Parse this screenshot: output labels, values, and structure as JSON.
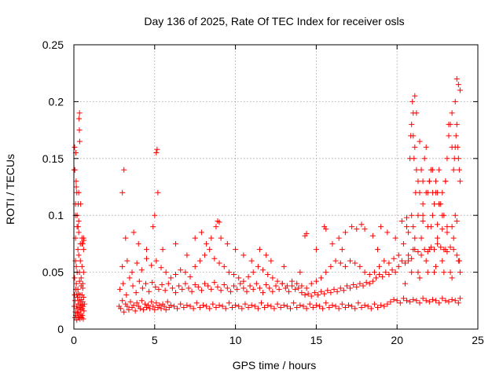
{
  "chart_data": {
    "type": "scatter",
    "title": "Day 136 of 2025, Rate Of TEC Index for receiver osls",
    "xlabel": "GPS time / hours",
    "ylabel": "ROTI / TECUs",
    "xlim": [
      0,
      25
    ],
    "ylim": [
      0,
      0.25
    ],
    "x_ticks": [
      0,
      5,
      10,
      15,
      20,
      25
    ],
    "y_ticks": [
      0,
      0.05,
      0.1,
      0.15,
      0.2,
      0.25
    ],
    "x_tick_labels": [
      "0",
      "5",
      "10",
      "15",
      "20",
      "25"
    ],
    "y_tick_labels": [
      "0",
      "0.05",
      "0.1",
      "0.15",
      "0.2",
      "0.25"
    ],
    "grid": true,
    "marker": "plus",
    "color": "#ff0000",
    "series": [
      {
        "x": [
          0.02,
          0.05,
          0.08,
          0.1,
          0.12,
          0.15,
          0.18,
          0.2,
          0.22,
          0.25,
          0.28,
          0.3,
          0.32,
          0.35,
          0.38,
          0.4,
          0.42,
          0.45,
          0.48,
          0.5,
          0.52,
          0.55,
          0.58,
          0.6,
          0.62,
          0.65,
          0.05,
          0.1,
          0.15,
          0.2,
          0.25,
          0.3,
          0.35,
          0.4,
          0.45,
          0.5,
          0.55,
          0.6,
          0.1,
          0.2,
          0.3,
          0.4,
          0.5,
          0.6,
          0.08,
          0.12,
          0.18,
          0.22,
          0.28,
          0.33,
          0.38,
          0.43,
          0.48,
          0.53,
          0.58,
          0.15,
          0.25,
          0.35,
          0.45,
          0.55,
          0.1,
          0.3,
          0.5,
          0.06,
          0.12,
          0.35,
          0.15,
          0.32,
          0.36,
          0.34,
          0.05,
          0.02,
          0.1,
          0.14,
          0.2,
          0.27,
          0.3,
          0.26,
          0.18,
          0.42,
          0.55,
          0.6,
          0.62,
          2.8,
          2.9,
          3.0,
          3.1,
          3.2,
          3.3,
          3.4,
          3.5,
          3.6,
          3.7,
          3.8,
          3.9,
          4.0,
          4.1,
          4.2,
          4.3,
          4.4,
          4.5,
          4.6,
          4.7,
          4.8,
          4.9,
          5.0,
          5.1,
          5.2,
          5.3,
          5.4,
          5.5,
          5.6,
          5.7,
          5.8,
          5.9,
          6.0,
          6.2,
          6.4,
          6.6,
          6.8,
          7.0,
          7.2,
          7.4,
          7.6,
          7.8,
          8.0,
          8.2,
          8.4,
          8.6,
          8.8,
          9.0,
          9.2,
          9.4,
          9.6,
          9.8,
          10.0,
          10.2,
          10.4,
          10.6,
          10.8,
          11.0,
          11.2,
          11.4,
          11.6,
          11.8,
          12.0,
          12.2,
          12.4,
          12.6,
          12.8,
          13.0,
          13.2,
          13.4,
          13.6,
          13.8,
          14.0,
          14.2,
          14.4,
          14.6,
          14.8,
          15.0,
          15.2,
          15.4,
          15.6,
          15.8,
          16.0,
          16.2,
          16.4,
          16.6,
          16.8,
          17.0,
          17.2,
          17.4,
          17.6,
          17.8,
          18.0,
          18.2,
          18.4,
          18.6,
          18.8,
          19.0,
          19.2,
          19.4,
          19.6,
          19.8,
          20.0,
          20.2,
          20.4,
          20.6,
          20.8,
          21.0,
          21.2,
          21.4,
          21.6,
          21.8,
          22.0,
          22.2,
          22.4,
          22.6,
          22.8,
          23.0,
          23.2,
          23.4,
          23.6,
          23.8,
          23.9,
          2.85,
          3.05,
          3.25,
          3.45,
          3.65,
          3.85,
          4.05,
          4.25,
          4.45,
          4.65,
          4.85,
          5.05,
          5.25,
          5.45,
          5.65,
          5.85,
          6.1,
          6.3,
          6.5,
          6.7,
          6.9,
          7.1,
          7.3,
          7.5,
          7.7,
          7.9,
          8.1,
          8.3,
          8.5,
          8.7,
          8.9,
          9.1,
          9.3,
          9.5,
          9.7,
          9.9,
          10.1,
          10.3,
          10.5,
          10.7,
          10.9,
          11.1,
          11.3,
          11.5,
          11.7,
          11.9,
          12.1,
          12.3,
          12.5,
          12.7,
          12.9,
          13.1,
          13.3,
          13.5,
          13.7,
          13.9,
          14.1,
          14.3,
          14.5,
          14.7,
          14.9,
          15.1,
          15.3,
          15.5,
          15.7,
          15.9,
          16.1,
          16.3,
          16.5,
          16.7,
          16.9,
          17.1,
          17.3,
          17.5,
          17.7,
          17.9,
          18.1,
          18.3,
          18.5,
          18.7,
          18.9,
          19.1,
          19.3,
          19.5,
          19.7,
          19.9,
          20.1,
          20.3,
          20.5,
          20.7,
          20.9,
          21.1,
          21.3,
          21.5,
          21.7,
          21.9,
          22.1,
          22.3,
          22.5,
          22.7,
          22.9,
          23.1,
          23.3,
          23.5,
          23.7,
          23.85,
          3.0,
          3.3,
          3.6,
          3.9,
          4.2,
          4.5,
          4.8,
          5.1,
          5.4,
          5.7,
          6.0,
          6.3,
          6.6,
          6.9,
          7.2,
          7.5,
          7.8,
          8.1,
          8.4,
          8.7,
          9.0,
          9.3,
          9.6,
          9.9,
          10.2,
          10.5,
          10.8,
          11.1,
          11.4,
          11.7,
          12.0,
          12.3,
          12.6,
          12.9,
          13.2,
          13.5,
          13.8,
          14.1,
          14.4,
          14.7,
          15.0,
          15.3,
          15.6,
          15.9,
          16.2,
          16.5,
          16.8,
          17.1,
          17.4,
          17.7,
          18.0,
          18.3,
          18.6,
          18.9,
          19.2,
          19.5,
          19.8,
          20.1,
          20.4,
          20.7,
          21.0,
          21.3,
          21.6,
          21.9,
          22.2,
          22.5,
          22.8,
          23.1,
          23.4,
          23.7,
          3.0,
          3.1,
          3.2,
          3.7,
          4.0,
          4.5,
          4.9,
          5.0,
          5.1,
          5.15,
          5.2,
          5.5,
          6.3,
          7.0,
          7.5,
          7.9,
          8.2,
          8.5,
          8.8,
          8.9,
          9.0,
          9.1,
          9.5,
          10.0,
          10.5,
          11.0,
          11.5,
          11.9,
          12.2,
          13.0,
          14.0,
          14.3,
          14.4,
          15.0,
          15.5,
          15.6,
          16.0,
          16.4,
          16.6,
          16.8,
          17.2,
          17.5,
          17.8,
          18.0,
          18.5,
          18.8,
          19.0,
          19.4,
          19.9,
          20.3,
          20.6,
          20.9,
          21.0,
          21.1,
          21.2,
          21.4,
          21.6,
          21.8,
          22.0,
          22.2,
          22.4,
          22.6,
          22.8,
          23.0,
          23.2,
          23.4,
          23.6,
          23.7,
          23.8,
          23.9,
          20.8,
          20.85,
          20.9,
          20.95,
          21.0,
          21.05,
          21.1,
          21.15,
          21.2,
          21.3,
          21.4,
          21.5,
          21.6,
          21.7,
          21.8,
          21.9,
          22.0,
          22.1,
          22.2,
          22.3,
          22.4,
          22.5,
          22.6,
          22.7,
          22.8,
          22.9,
          23.0,
          23.1,
          23.2,
          23.3,
          23.4,
          23.5,
          23.55,
          23.6,
          23.65,
          23.7,
          23.75,
          23.8,
          23.85,
          23.9,
          20.5,
          20.7,
          21.0,
          21.3,
          21.5,
          21.8,
          22.0,
          22.3,
          22.5,
          22.8,
          23.0,
          23.3,
          23.5,
          23.8,
          20.6,
          21.1,
          21.6,
          22.1,
          22.6,
          23.1,
          23.6,
          20.9,
          21.4,
          21.9,
          22.4,
          22.9,
          23.4,
          23.9
        ],
        "y": [
          0.02,
          0.03,
          0.025,
          0.015,
          0.035,
          0.02,
          0.03,
          0.018,
          0.028,
          0.022,
          0.031,
          0.015,
          0.025,
          0.019,
          0.03,
          0.022,
          0.017,
          0.026,
          0.021,
          0.03,
          0.018,
          0.024,
          0.02,
          0.028,
          0.016,
          0.022,
          0.045,
          0.06,
          0.055,
          0.05,
          0.07,
          0.065,
          0.05,
          0.06,
          0.045,
          0.055,
          0.04,
          0.05,
          0.08,
          0.09,
          0.085,
          0.075,
          0.08,
          0.07,
          0.01,
          0.012,
          0.008,
          0.014,
          0.01,
          0.011,
          0.009,
          0.013,
          0.01,
          0.012,
          0.009,
          0.04,
          0.035,
          0.042,
          0.038,
          0.036,
          0.1,
          0.12,
          0.075,
          0.14,
          0.155,
          0.19,
          0.125,
          0.185,
          0.165,
          0.175,
          0.16,
          0.14,
          0.11,
          0.13,
          0.1,
          0.11,
          0.095,
          0.09,
          0.12,
          0.11,
          0.075,
          0.08,
          0.078,
          0.02,
          0.018,
          0.025,
          0.015,
          0.022,
          0.02,
          0.017,
          0.024,
          0.019,
          0.021,
          0.016,
          0.023,
          0.02,
          0.018,
          0.025,
          0.017,
          0.022,
          0.019,
          0.021,
          0.018,
          0.024,
          0.02,
          0.017,
          0.023,
          0.019,
          0.021,
          0.018,
          0.022,
          0.02,
          0.017,
          0.024,
          0.019,
          0.021,
          0.02,
          0.018,
          0.022,
          0.019,
          0.021,
          0.02,
          0.018,
          0.023,
          0.019,
          0.021,
          0.02,
          0.018,
          0.022,
          0.019,
          0.021,
          0.02,
          0.018,
          0.023,
          0.019,
          0.021,
          0.02,
          0.018,
          0.022,
          0.019,
          0.021,
          0.02,
          0.018,
          0.023,
          0.019,
          0.021,
          0.02,
          0.018,
          0.022,
          0.019,
          0.021,
          0.02,
          0.018,
          0.023,
          0.019,
          0.021,
          0.02,
          0.018,
          0.022,
          0.019,
          0.021,
          0.02,
          0.018,
          0.023,
          0.019,
          0.021,
          0.02,
          0.018,
          0.022,
          0.019,
          0.021,
          0.02,
          0.018,
          0.023,
          0.019,
          0.021,
          0.02,
          0.018,
          0.022,
          0.019,
          0.021,
          0.02,
          0.022,
          0.024,
          0.026,
          0.025,
          0.023,
          0.027,
          0.025,
          0.024,
          0.026,
          0.025,
          0.023,
          0.027,
          0.025,
          0.024,
          0.026,
          0.025,
          0.023,
          0.027,
          0.025,
          0.024,
          0.026,
          0.025,
          0.023,
          0.027,
          0.035,
          0.04,
          0.03,
          0.045,
          0.038,
          0.032,
          0.042,
          0.036,
          0.04,
          0.033,
          0.041,
          0.037,
          0.035,
          0.039,
          0.034,
          0.04,
          0.036,
          0.032,
          0.038,
          0.035,
          0.04,
          0.036,
          0.033,
          0.039,
          0.037,
          0.034,
          0.04,
          0.038,
          0.035,
          0.041,
          0.037,
          0.034,
          0.039,
          0.036,
          0.033,
          0.038,
          0.035,
          0.04,
          0.036,
          0.033,
          0.038,
          0.035,
          0.04,
          0.036,
          0.032,
          0.039,
          0.036,
          0.033,
          0.038,
          0.035,
          0.04,
          0.036,
          0.033,
          0.038,
          0.035,
          0.036,
          0.032,
          0.03,
          0.031,
          0.029,
          0.032,
          0.03,
          0.033,
          0.031,
          0.034,
          0.032,
          0.035,
          0.033,
          0.036,
          0.034,
          0.038,
          0.036,
          0.039,
          0.037,
          0.04,
          0.038,
          0.041,
          0.04,
          0.042,
          0.045,
          0.048,
          0.046,
          0.05,
          0.048,
          0.052,
          0.05,
          0.055,
          0.06,
          0.058,
          0.065,
          0.062,
          0.07,
          0.068,
          0.065,
          0.07,
          0.068,
          0.072,
          0.07,
          0.075,
          0.072,
          0.07,
          0.068,
          0.072,
          0.07,
          0.065,
          0.06,
          0.055,
          0.06,
          0.05,
          0.058,
          0.052,
          0.062,
          0.056,
          0.06,
          0.054,
          0.05,
          0.045,
          0.048,
          0.052,
          0.05,
          0.046,
          0.055,
          0.06,
          0.065,
          0.07,
          0.062,
          0.058,
          0.055,
          0.05,
          0.048,
          0.045,
          0.042,
          0.046,
          0.05,
          0.055,
          0.052,
          0.048,
          0.045,
          0.042,
          0.04,
          0.038,
          0.042,
          0.04,
          0.038,
          0.036,
          0.04,
          0.042,
          0.045,
          0.05,
          0.055,
          0.06,
          0.058,
          0.055,
          0.06,
          0.058,
          0.055,
          0.05,
          0.048,
          0.05,
          0.055,
          0.06,
          0.058,
          0.062,
          0.065,
          0.075,
          0.085,
          0.09,
          0.1,
          0.095,
          0.09,
          0.1,
          0.092,
          0.088,
          0.085,
          0.09,
          0.095,
          0.12,
          0.14,
          0.08,
          0.085,
          0.075,
          0.07,
          0.09,
          0.1,
          0.155,
          0.158,
          0.12,
          0.07,
          0.075,
          0.065,
          0.08,
          0.085,
          0.075,
          0.08,
          0.09,
          0.095,
          0.094,
          0.08,
          0.075,
          0.07,
          0.065,
          0.06,
          0.07,
          0.065,
          0.06,
          0.055,
          0.05,
          0.082,
          0.084,
          0.07,
          0.09,
          0.088,
          0.075,
          0.08,
          0.07,
          0.085,
          0.09,
          0.088,
          0.092,
          0.088,
          0.082,
          0.07,
          0.09,
          0.085,
          0.08,
          0.095,
          0.098,
          0.1,
          0.17,
          0.205,
          0.19,
          0.165,
          0.11,
          0.12,
          0.13,
          0.14,
          0.12,
          0.11,
          0.1,
          0.13,
          0.18,
          0.19,
          0.2,
          0.22,
          0.215,
          0.21,
          0.15,
          0.17,
          0.18,
          0.2,
          0.19,
          0.15,
          0.16,
          0.12,
          0.14,
          0.13,
          0.12,
          0.14,
          0.13,
          0.15,
          0.16,
          0.12,
          0.13,
          0.14,
          0.12,
          0.11,
          0.13,
          0.12,
          0.14,
          0.11,
          0.12,
          0.1,
          0.13,
          0.15,
          0.17,
          0.18,
          0.16,
          0.14,
          0.15,
          0.16,
          0.17,
          0.18,
          0.16,
          0.15,
          0.14,
          0.13,
          0.04,
          0.06,
          0.07,
          0.05,
          0.08,
          0.06,
          0.07,
          0.05,
          0.08,
          0.06,
          0.07,
          0.05,
          0.08,
          0.06,
          0.09,
          0.08,
          0.1,
          0.09,
          0.11,
          0.09,
          0.1,
          0.05,
          0.045,
          0.05,
          0.055,
          0.05,
          0.045,
          0.05
        ]
      }
    ]
  }
}
